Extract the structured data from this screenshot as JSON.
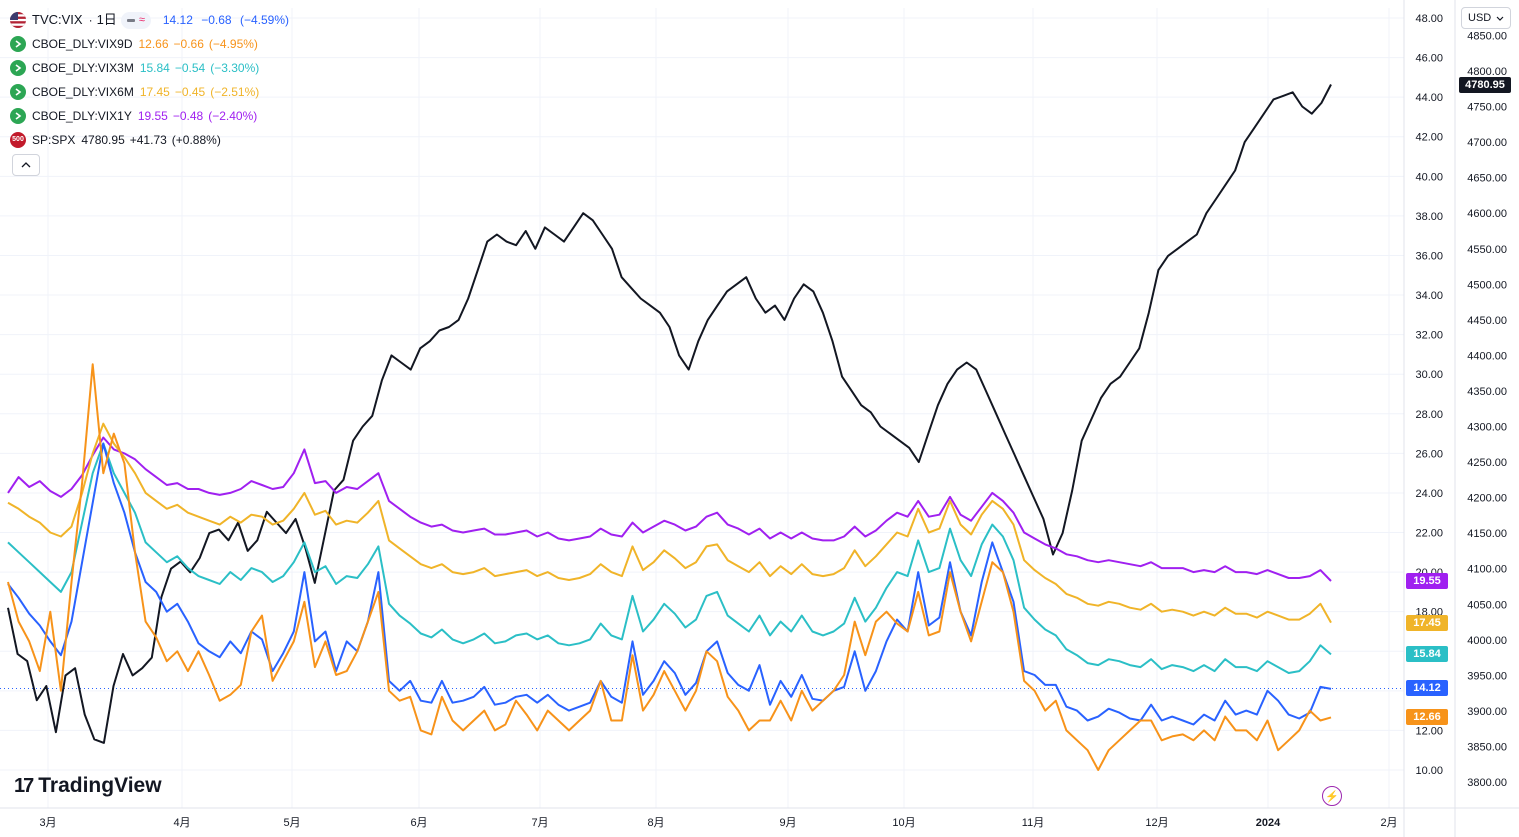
{
  "header": {
    "main_symbol": "TVC:VIX",
    "timeframe": "1日",
    "main_last": "14.12",
    "main_change": "−0.68",
    "main_change_pct": "(−4.59%)",
    "indicator_icon": "≈"
  },
  "legend": [
    {
      "symbol": "CBOE_DLY:VIX9D",
      "last": "12.66",
      "change": "−0.66",
      "pct": "(−4.95%)",
      "color": "#f7931a",
      "icon": "arrow-right-icon",
      "icon_bg": "#2ca654"
    },
    {
      "symbol": "CBOE_DLY:VIX3M",
      "last": "15.84",
      "change": "−0.54",
      "pct": "(−3.30%)",
      "color": "#2bbfc6",
      "icon": "arrow-right-icon",
      "icon_bg": "#2ca654"
    },
    {
      "symbol": "CBOE_DLY:VIX6M",
      "last": "17.45",
      "change": "−0.45",
      "pct": "(−2.51%)",
      "color": "#f0b429",
      "icon": "arrow-right-icon",
      "icon_bg": "#2ca654"
    },
    {
      "symbol": "CBOE_DLY:VIX1Y",
      "last": "19.55",
      "change": "−0.48",
      "pct": "(−2.40%)",
      "color": "#a020f0",
      "icon": "arrow-right-icon",
      "icon_bg": "#2ca654"
    },
    {
      "symbol": "SP:SPX",
      "last": "4780.95",
      "change": "+41.73",
      "pct": "(+0.88%)",
      "color": "#131722",
      "icon_text": "500",
      "icon_bg": "#c21a2b"
    }
  ],
  "toolbar": {
    "currency": "USD",
    "collapse_icon": "chevron-up-icon"
  },
  "brand": {
    "name": "TradingView",
    "mark": "17"
  },
  "chart_data": {
    "type": "line",
    "x_labels": [
      "3月",
      "4月",
      "5月",
      "6月",
      "7月",
      "8月",
      "9月",
      "10月",
      "11月",
      "12月",
      "2024",
      "2月"
    ],
    "left_axis": {
      "ticks": [
        "48.00",
        "46.00",
        "44.00",
        "42.00",
        "40.00",
        "38.00",
        "36.00",
        "34.00",
        "32.00",
        "30.00",
        "28.00",
        "26.00",
        "24.00",
        "22.00",
        "20.00",
        "18.00",
        "16.00",
        "14.00",
        "12.00",
        "10.00"
      ],
      "range": [
        9,
        49
      ]
    },
    "right_axis": {
      "ticks": [
        "4850.00",
        "4800.00",
        "4750.00",
        "4700.00",
        "4650.00",
        "4600.00",
        "4550.00",
        "4500.00",
        "4450.00",
        "4400.00",
        "4350.00",
        "4300.00",
        "4250.00",
        "4200.00",
        "4150.00",
        "4100.00",
        "4050.00",
        "4000.00",
        "3950.00",
        "3900.00",
        "3850.00",
        "3800.00"
      ],
      "range": [
        3780,
        4870
      ]
    },
    "last_labels": [
      {
        "value": "4780.95",
        "bg": "#131722"
      },
      {
        "value": "19.55",
        "bg": "#a020f0"
      },
      {
        "value": "17.45",
        "bg": "#f0b429"
      },
      {
        "value": "15.84",
        "bg": "#2bbfc6"
      },
      {
        "value": "14.12",
        "bg": "#2962ff"
      },
      {
        "value": "12.66",
        "bg": "#f7931a"
      }
    ],
    "reference_line": 14.12,
    "grid": true,
    "series": [
      {
        "name": "TVC:VIX",
        "axis": "left",
        "color": "#2962ff",
        "values": [
          19.4,
          18.7,
          17.9,
          17.3,
          16.5,
          15.8,
          17.5,
          20.5,
          23.5,
          26.5,
          24.5,
          23.0,
          21.0,
          19.5,
          19.0,
          18.0,
          18.4,
          17.5,
          16.4,
          16.0,
          15.7,
          16.5,
          15.9,
          17.0,
          16.6,
          15.0,
          15.9,
          17.0,
          20.0,
          16.5,
          17.0,
          15.0,
          16.5,
          16.0,
          17.5,
          20.0,
          14.5,
          14.0,
          14.5,
          13.5,
          13.4,
          14.5,
          13.4,
          13.5,
          13.7,
          14.2,
          13.3,
          13.4,
          13.7,
          13.8,
          13.4,
          13.8,
          13.3,
          13.0,
          13.2,
          13.4,
          14.5,
          13.7,
          13.4,
          16.5,
          13.8,
          14.5,
          15.5,
          14.9,
          13.8,
          14.4,
          16.0,
          16.5,
          14.9,
          14.3,
          14.0,
          15.3,
          13.3,
          14.5,
          13.7,
          14.8,
          13.6,
          13.5,
          14.0,
          14.2,
          16.0,
          14.0,
          15.0,
          16.5,
          17.6,
          17.0,
          20.0,
          17.3,
          17.7,
          20.5,
          18.0,
          16.8,
          19.5,
          21.5,
          20.0,
          18.5,
          15.0,
          14.8,
          14.3,
          14.3,
          13.2,
          13.0,
          12.5,
          12.7,
          13.1,
          12.9,
          12.6,
          12.5,
          13.3,
          12.5,
          12.7,
          12.5,
          12.3,
          12.8,
          12.5,
          13.5,
          12.8,
          13.0,
          12.8,
          14.0,
          13.5,
          12.8,
          12.6,
          12.9,
          14.2,
          14.1
        ]
      },
      {
        "name": "CBOE_DLY:VIX9D",
        "axis": "left",
        "color": "#f7931a",
        "values": [
          19.5,
          17.5,
          16.5,
          15.0,
          18.0,
          14.0,
          19.5,
          24.5,
          30.5,
          25.0,
          27.0,
          25.5,
          21.0,
          17.5,
          16.7,
          15.5,
          16.0,
          15.0,
          16.0,
          14.8,
          13.5,
          13.8,
          14.3,
          17.0,
          17.8,
          14.5,
          15.5,
          16.5,
          18.5,
          15.2,
          16.5,
          14.8,
          15.0,
          16.0,
          17.5,
          19.0,
          14.0,
          13.5,
          13.7,
          12.0,
          11.8,
          13.7,
          12.5,
          12.0,
          12.5,
          13.0,
          12.0,
          12.3,
          13.5,
          12.8,
          12.0,
          13.0,
          12.5,
          12.0,
          12.5,
          13.0,
          14.5,
          12.5,
          12.5,
          15.8,
          13.0,
          13.8,
          15.0,
          14.0,
          13.0,
          14.0,
          16.0,
          15.5,
          13.7,
          13.0,
          12.0,
          12.5,
          12.5,
          13.5,
          12.5,
          14.0,
          13.0,
          13.5,
          14.0,
          14.8,
          17.5,
          15.8,
          17.5,
          18.0,
          17.4,
          17.0,
          19.0,
          16.8,
          17.0,
          20.0,
          18.0,
          16.5,
          18.5,
          20.5,
          20.0,
          18.0,
          14.5,
          14.0,
          13.0,
          13.5,
          12.0,
          11.5,
          11.0,
          10.0,
          11.0,
          11.5,
          12.0,
          12.5,
          12.5,
          11.5,
          11.7,
          11.8,
          11.5,
          12.0,
          11.5,
          12.7,
          12.0,
          12.0,
          11.5,
          12.5,
          11.0,
          11.5,
          12.0,
          13.0,
          12.5,
          12.66
        ]
      },
      {
        "name": "CBOE_DLY:VIX3M",
        "axis": "left",
        "color": "#2bbfc6",
        "values": [
          21.5,
          21.0,
          20.5,
          20.0,
          19.5,
          19.0,
          20.0,
          22.5,
          25.0,
          26.5,
          25.0,
          24.0,
          23.0,
          21.5,
          21.0,
          20.5,
          20.8,
          20.2,
          19.8,
          19.6,
          19.4,
          20.0,
          19.6,
          20.2,
          20.0,
          19.5,
          19.8,
          20.5,
          21.5,
          20.0,
          20.3,
          19.4,
          19.8,
          19.7,
          20.4,
          21.3,
          18.4,
          17.8,
          17.4,
          16.9,
          16.7,
          17.1,
          16.6,
          16.4,
          16.6,
          16.9,
          16.4,
          16.5,
          16.8,
          16.9,
          16.6,
          16.8,
          16.4,
          16.3,
          16.4,
          16.6,
          17.4,
          16.8,
          16.6,
          18.8,
          17.0,
          17.6,
          18.4,
          17.9,
          17.2,
          17.6,
          18.8,
          19.0,
          17.8,
          17.4,
          17.0,
          17.8,
          16.8,
          17.5,
          17.0,
          17.8,
          17.0,
          16.8,
          17.0,
          17.4,
          18.7,
          17.5,
          18.2,
          19.2,
          20.0,
          19.8,
          21.6,
          20.0,
          20.2,
          22.2,
          20.6,
          19.8,
          21.4,
          22.4,
          21.8,
          20.6,
          18.2,
          17.6,
          17.1,
          16.8,
          16.1,
          15.8,
          15.4,
          15.3,
          15.6,
          15.5,
          15.3,
          15.2,
          15.6,
          15.1,
          15.3,
          15.2,
          15.0,
          15.3,
          15.0,
          15.6,
          15.2,
          15.2,
          15.0,
          15.5,
          15.2,
          14.9,
          15.0,
          15.5,
          16.3,
          15.84
        ]
      },
      {
        "name": "CBOE_DLY:VIX6M",
        "axis": "left",
        "color": "#f0b429",
        "values": [
          23.5,
          23.2,
          22.8,
          22.5,
          22.0,
          21.8,
          22.3,
          24.0,
          26.0,
          27.5,
          26.5,
          25.8,
          25.0,
          24.0,
          23.6,
          23.2,
          23.4,
          23.0,
          22.8,
          22.6,
          22.4,
          22.8,
          22.5,
          22.9,
          22.8,
          22.4,
          22.6,
          23.2,
          24.0,
          22.9,
          23.1,
          22.4,
          22.6,
          22.5,
          23.0,
          23.6,
          21.6,
          21.2,
          20.8,
          20.4,
          20.2,
          20.4,
          20.0,
          19.9,
          20.0,
          20.2,
          19.8,
          19.9,
          20.0,
          20.1,
          19.8,
          20.0,
          19.7,
          19.6,
          19.7,
          19.9,
          20.4,
          20.0,
          19.8,
          21.3,
          20.1,
          20.5,
          21.1,
          20.7,
          20.2,
          20.5,
          21.3,
          21.4,
          20.6,
          20.3,
          20.0,
          20.5,
          19.8,
          20.3,
          19.9,
          20.4,
          19.9,
          19.8,
          19.9,
          20.2,
          21.1,
          20.3,
          20.8,
          21.4,
          22.0,
          21.8,
          23.2,
          22.0,
          22.2,
          23.6,
          22.4,
          21.9,
          22.9,
          23.6,
          23.2,
          22.4,
          20.6,
          20.1,
          19.7,
          19.4,
          18.9,
          18.7,
          18.4,
          18.3,
          18.5,
          18.4,
          18.2,
          18.1,
          18.4,
          18.0,
          18.1,
          18.0,
          17.8,
          18.0,
          17.8,
          18.2,
          17.9,
          17.9,
          17.7,
          18.0,
          17.8,
          17.6,
          17.6,
          17.9,
          18.4,
          17.45
        ]
      },
      {
        "name": "CBOE_DLY:VIX1Y",
        "axis": "left",
        "color": "#a020f0",
        "values": [
          24.0,
          24.8,
          24.3,
          24.6,
          24.1,
          23.8,
          24.2,
          24.9,
          25.9,
          26.8,
          26.2,
          26.0,
          25.7,
          25.2,
          24.8,
          24.4,
          24.5,
          24.2,
          24.2,
          24.0,
          23.9,
          24.0,
          24.2,
          24.6,
          24.4,
          24.2,
          24.3,
          25.0,
          26.2,
          24.5,
          24.6,
          24.0,
          24.3,
          24.2,
          24.6,
          25.0,
          23.6,
          23.2,
          22.8,
          22.5,
          22.3,
          22.4,
          22.1,
          22.0,
          22.1,
          22.2,
          21.9,
          21.9,
          22.0,
          22.1,
          21.8,
          22.0,
          21.7,
          21.6,
          21.7,
          21.8,
          22.2,
          21.9,
          21.8,
          22.5,
          22.0,
          22.3,
          22.6,
          22.4,
          22.1,
          22.3,
          22.8,
          23.0,
          22.4,
          22.2,
          21.9,
          22.2,
          21.7,
          22.0,
          21.7,
          22.0,
          21.7,
          21.6,
          21.6,
          21.8,
          22.3,
          21.8,
          22.1,
          22.6,
          23.0,
          22.8,
          23.6,
          22.8,
          22.9,
          23.8,
          22.9,
          22.6,
          23.3,
          24.0,
          23.6,
          23.0,
          22.0,
          21.7,
          21.4,
          21.2,
          20.9,
          20.8,
          20.6,
          20.5,
          20.6,
          20.5,
          20.4,
          20.3,
          20.5,
          20.2,
          20.2,
          20.2,
          20.0,
          20.1,
          20.0,
          20.3,
          20.0,
          20.0,
          19.9,
          20.1,
          19.9,
          19.7,
          19.7,
          19.8,
          20.1,
          19.55
        ]
      },
      {
        "name": "SP:SPX",
        "axis": "right",
        "color": "#131722",
        "values": [
          4045,
          3980,
          3970,
          3915,
          3935,
          3870,
          3950,
          3960,
          3895,
          3860,
          3855,
          3935,
          3980,
          3950,
          3960,
          3975,
          4060,
          4100,
          4110,
          4095,
          4115,
          4150,
          4155,
          4140,
          4165,
          4125,
          4140,
          4180,
          4165,
          4150,
          4170,
          4130,
          4080,
          4145,
          4210,
          4225,
          4280,
          4300,
          4315,
          4365,
          4400,
          4390,
          4380,
          4410,
          4420,
          4435,
          4440,
          4450,
          4480,
          4520,
          4560,
          4570,
          4560,
          4555,
          4575,
          4550,
          4580,
          4570,
          4560,
          4580,
          4600,
          4590,
          4570,
          4550,
          4510,
          4495,
          4480,
          4470,
          4460,
          4440,
          4400,
          4380,
          4420,
          4450,
          4470,
          4490,
          4500,
          4510,
          4480,
          4460,
          4470,
          4450,
          4480,
          4500,
          4490,
          4460,
          4420,
          4370,
          4350,
          4330,
          4320,
          4300,
          4290,
          4280,
          4270,
          4250,
          4290,
          4330,
          4360,
          4380,
          4390,
          4380,
          4350,
          4320,
          4290,
          4260,
          4230,
          4200,
          4170,
          4120,
          4150,
          4210,
          4280,
          4310,
          4340,
          4360,
          4370,
          4390,
          4410,
          4460,
          4520,
          4540,
          4550,
          4560,
          4570,
          4600,
          4620,
          4640,
          4660,
          4700,
          4720,
          4740,
          4760,
          4765,
          4770,
          4750,
          4740,
          4755,
          4780.95
        ]
      }
    ]
  }
}
